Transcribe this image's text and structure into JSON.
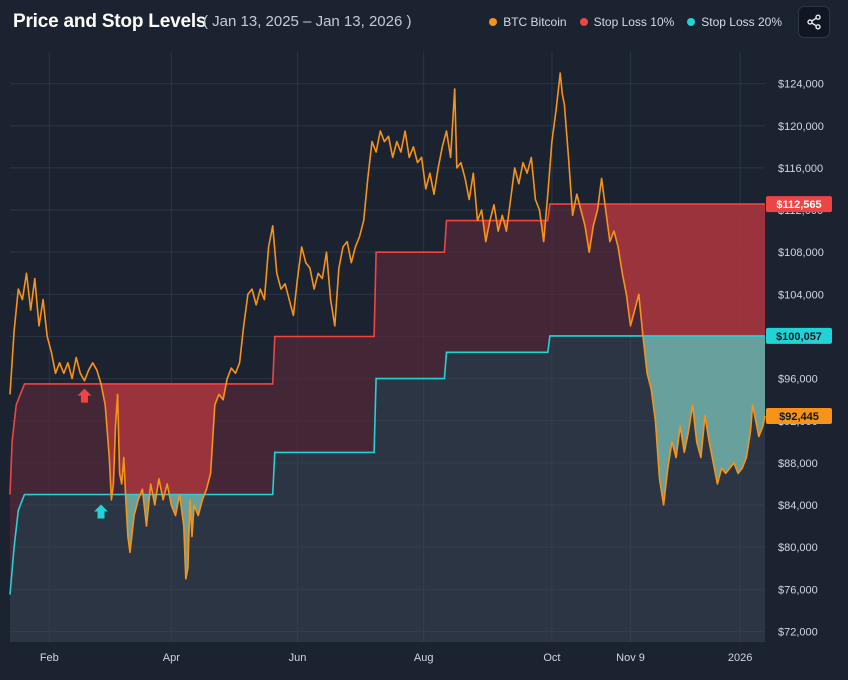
{
  "header": {
    "title": "Price and Stop Levels",
    "date_range": "( Jan 13, 2025 – Jan 13, 2026 )"
  },
  "legend": [
    {
      "label": "BTC Bitcoin",
      "color": "#f7931a"
    },
    {
      "label": "Stop Loss 10%",
      "color": "#ef4444"
    },
    {
      "label": "Stop Loss 20%",
      "color": "#22d3d6"
    }
  ],
  "share": {
    "icon": "share-icon"
  },
  "chart_data": {
    "type": "line",
    "title": "Price and Stop Levels",
    "ylim": [
      71000,
      127000
    ],
    "y_ticks": [
      {
        "value": 72000,
        "label": "$72,000"
      },
      {
        "value": 76000,
        "label": "$76,000"
      },
      {
        "value": 80000,
        "label": "$80,000"
      },
      {
        "value": 84000,
        "label": "$84,000"
      },
      {
        "value": 88000,
        "label": "$88,000"
      },
      {
        "value": 92000,
        "label": "$92,000"
      },
      {
        "value": 96000,
        "label": "$96,000"
      },
      {
        "value": 100000,
        "label": "$100,000"
      },
      {
        "value": 104000,
        "label": "$104,000"
      },
      {
        "value": 108000,
        "label": "$108,000"
      },
      {
        "value": 112000,
        "label": "$112,000"
      },
      {
        "value": 116000,
        "label": "$116,000"
      },
      {
        "value": 120000,
        "label": "$120,000"
      },
      {
        "value": 124000,
        "label": "$124,000"
      }
    ],
    "x_ticks": [
      {
        "day": 19,
        "label": "Feb"
      },
      {
        "day": 78,
        "label": "Apr"
      },
      {
        "day": 139,
        "label": "Jun"
      },
      {
        "day": 200,
        "label": "Aug"
      },
      {
        "day": 262,
        "label": "Oct"
      },
      {
        "day": 300,
        "label": "Nov 9"
      },
      {
        "day": 353,
        "label": "2026"
      }
    ],
    "days_total": 365,
    "series": [
      {
        "name": "BTC Bitcoin",
        "color": "#f7931a",
        "points": [
          [
            0,
            94500
          ],
          [
            2,
            100500
          ],
          [
            4,
            104500
          ],
          [
            6,
            103500
          ],
          [
            8,
            106000
          ],
          [
            10,
            102500
          ],
          [
            12,
            105500
          ],
          [
            14,
            101000
          ],
          [
            16,
            103500
          ],
          [
            18,
            100000
          ],
          [
            20,
            98500
          ],
          [
            22,
            96500
          ],
          [
            24,
            97500
          ],
          [
            26,
            96500
          ],
          [
            28,
            97500
          ],
          [
            30,
            96000
          ],
          [
            32,
            98000
          ],
          [
            34,
            96500
          ],
          [
            36,
            95800
          ],
          [
            38,
            96800
          ],
          [
            40,
            97500
          ],
          [
            42,
            96800
          ],
          [
            44,
            95500
          ],
          [
            46,
            93500
          ],
          [
            48,
            88500
          ],
          [
            49,
            84500
          ],
          [
            50,
            86000
          ],
          [
            51,
            91500
          ],
          [
            52,
            94500
          ],
          [
            53,
            87000
          ],
          [
            54,
            86000
          ],
          [
            55,
            88500
          ],
          [
            56,
            84500
          ],
          [
            57,
            81000
          ],
          [
            58,
            79500
          ],
          [
            60,
            83000
          ],
          [
            62,
            84500
          ],
          [
            64,
            85500
          ],
          [
            66,
            82000
          ],
          [
            68,
            86000
          ],
          [
            70,
            84000
          ],
          [
            72,
            86500
          ],
          [
            74,
            84500
          ],
          [
            76,
            86000
          ],
          [
            78,
            84000
          ],
          [
            80,
            83000
          ],
          [
            82,
            85000
          ],
          [
            84,
            82000
          ],
          [
            85,
            77000
          ],
          [
            86,
            78000
          ],
          [
            87,
            84500
          ],
          [
            88,
            81000
          ],
          [
            89,
            84000
          ],
          [
            91,
            83000
          ],
          [
            93,
            84500
          ],
          [
            95,
            85500
          ],
          [
            97,
            87000
          ],
          [
            99,
            93500
          ],
          [
            101,
            94500
          ],
          [
            103,
            94000
          ],
          [
            105,
            96000
          ],
          [
            107,
            97000
          ],
          [
            109,
            96500
          ],
          [
            111,
            97500
          ],
          [
            113,
            101000
          ],
          [
            115,
            104000
          ],
          [
            117,
            104500
          ],
          [
            119,
            103000
          ],
          [
            121,
            104500
          ],
          [
            123,
            103500
          ],
          [
            125,
            108500
          ],
          [
            127,
            110500
          ],
          [
            129,
            106000
          ],
          [
            131,
            104500
          ],
          [
            133,
            105000
          ],
          [
            135,
            103500
          ],
          [
            137,
            102000
          ],
          [
            139,
            105500
          ],
          [
            141,
            108500
          ],
          [
            143,
            107000
          ],
          [
            145,
            106500
          ],
          [
            147,
            104500
          ],
          [
            149,
            106000
          ],
          [
            151,
            105500
          ],
          [
            153,
            108000
          ],
          [
            155,
            103500
          ],
          [
            157,
            101000
          ],
          [
            159,
            106500
          ],
          [
            161,
            108500
          ],
          [
            163,
            109000
          ],
          [
            165,
            107000
          ],
          [
            167,
            108500
          ],
          [
            169,
            109500
          ],
          [
            171,
            111000
          ],
          [
            173,
            115000
          ],
          [
            175,
            118500
          ],
          [
            177,
            117500
          ],
          [
            179,
            119500
          ],
          [
            181,
            118500
          ],
          [
            183,
            119000
          ],
          [
            185,
            117000
          ],
          [
            187,
            118500
          ],
          [
            189,
            117500
          ],
          [
            191,
            119500
          ],
          [
            193,
            117000
          ],
          [
            195,
            118000
          ],
          [
            197,
            116500
          ],
          [
            199,
            117000
          ],
          [
            201,
            114000
          ],
          [
            203,
            115500
          ],
          [
            205,
            113500
          ],
          [
            207,
            116000
          ],
          [
            209,
            118000
          ],
          [
            211,
            119500
          ],
          [
            213,
            117000
          ],
          [
            215,
            123500
          ],
          [
            216,
            116000
          ],
          [
            218,
            116500
          ],
          [
            220,
            115000
          ],
          [
            222,
            113000
          ],
          [
            224,
            115500
          ],
          [
            226,
            111000
          ],
          [
            228,
            112000
          ],
          [
            230,
            109000
          ],
          [
            232,
            111000
          ],
          [
            234,
            112500
          ],
          [
            236,
            110000
          ],
          [
            238,
            111500
          ],
          [
            240,
            110000
          ],
          [
            242,
            113000
          ],
          [
            244,
            116000
          ],
          [
            246,
            114500
          ],
          [
            248,
            116500
          ],
          [
            250,
            115500
          ],
          [
            252,
            117000
          ],
          [
            254,
            113000
          ],
          [
            256,
            112000
          ],
          [
            258,
            109000
          ],
          [
            260,
            113500
          ],
          [
            262,
            118500
          ],
          [
            264,
            121500
          ],
          [
            266,
            125000
          ],
          [
            267,
            123000
          ],
          [
            268,
            122000
          ],
          [
            270,
            117000
          ],
          [
            272,
            111500
          ],
          [
            274,
            113500
          ],
          [
            276,
            112000
          ],
          [
            278,
            110500
          ],
          [
            280,
            108000
          ],
          [
            282,
            110500
          ],
          [
            284,
            112000
          ],
          [
            286,
            115000
          ],
          [
            288,
            112000
          ],
          [
            290,
            109000
          ],
          [
            292,
            110000
          ],
          [
            294,
            108500
          ],
          [
            296,
            106000
          ],
          [
            298,
            104000
          ],
          [
            300,
            101000
          ],
          [
            302,
            102500
          ],
          [
            304,
            104000
          ],
          [
            306,
            100000
          ],
          [
            308,
            96500
          ],
          [
            310,
            95000
          ],
          [
            312,
            92000
          ],
          [
            314,
            86500
          ],
          [
            316,
            84000
          ],
          [
            318,
            87500
          ],
          [
            320,
            90000
          ],
          [
            322,
            88500
          ],
          [
            324,
            91500
          ],
          [
            326,
            89000
          ],
          [
            328,
            91000
          ],
          [
            330,
            93500
          ],
          [
            332,
            90000
          ],
          [
            334,
            88500
          ],
          [
            336,
            92500
          ],
          [
            338,
            90000
          ],
          [
            340,
            88000
          ],
          [
            342,
            86000
          ],
          [
            344,
            87500
          ],
          [
            346,
            87000
          ],
          [
            348,
            87500
          ],
          [
            350,
            88000
          ],
          [
            352,
            87000
          ],
          [
            354,
            87500
          ],
          [
            356,
            88500
          ],
          [
            358,
            91000
          ],
          [
            359,
            93500
          ],
          [
            360,
            92500
          ],
          [
            362,
            90500
          ],
          [
            364,
            91500
          ],
          [
            365,
            92445
          ]
        ]
      },
      {
        "name": "Stop Loss 10%",
        "color": "#ef4444",
        "points": [
          [
            0,
            85000
          ],
          [
            1,
            90000
          ],
          [
            3,
            93500
          ],
          [
            5,
            94500
          ],
          [
            7,
            95500
          ],
          [
            127,
            95500
          ],
          [
            128,
            100000
          ],
          [
            176,
            100000
          ],
          [
            177,
            108000
          ],
          [
            210,
            108000
          ],
          [
            211,
            111000
          ],
          [
            260,
            111000
          ],
          [
            261,
            112565
          ],
          [
            365,
            112565
          ]
        ]
      },
      {
        "name": "Stop Loss 20%",
        "color": "#22d3d6",
        "points": [
          [
            0,
            75500
          ],
          [
            2,
            80000
          ],
          [
            4,
            83500
          ],
          [
            6,
            84500
          ],
          [
            7,
            85000
          ],
          [
            127,
            85000
          ],
          [
            128,
            89000
          ],
          [
            176,
            89000
          ],
          [
            177,
            96000
          ],
          [
            210,
            96000
          ],
          [
            211,
            98500
          ],
          [
            260,
            98500
          ],
          [
            261,
            100057
          ],
          [
            365,
            100057
          ]
        ]
      }
    ],
    "badges": [
      {
        "label": "$112,565",
        "value": 112565,
        "color": "#ef4444"
      },
      {
        "label": "$100,057",
        "value": 100057,
        "color": "#22d3d6"
      },
      {
        "label": "$92,445",
        "value": 92445,
        "color": "#f7931a"
      }
    ],
    "markers": [
      {
        "day": 36,
        "value": 96000,
        "color": "#ef4444",
        "name": "stop-10-trigger-arrow"
      },
      {
        "day": 44,
        "value": 85000,
        "color": "#22d3d6",
        "name": "stop-20-trigger-arrow"
      }
    ]
  }
}
